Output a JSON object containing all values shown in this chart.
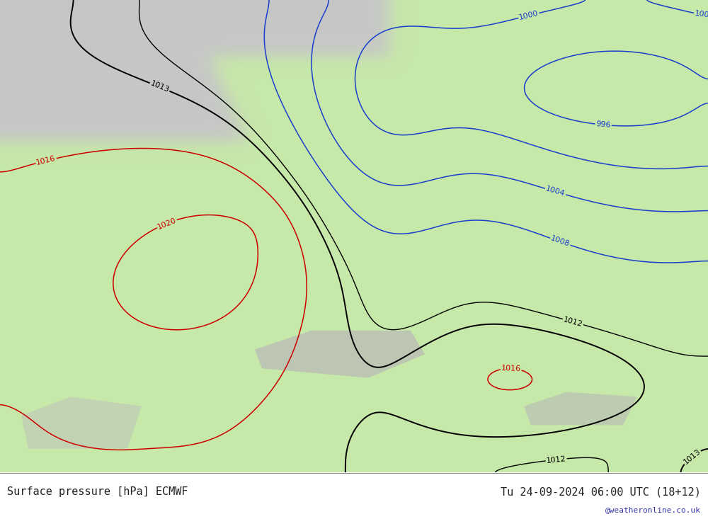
{
  "title_left": "Surface pressure [hPa] ECMWF",
  "title_right": "Tu 24-09-2024 06:00 UTC (18+12)",
  "watermark": "@weatheronline.co.uk",
  "land_color": "#c8e8a8",
  "gray_color": "#c8c8c8",
  "sea_color": "#d8eed8",
  "text_color_bottom": "#222222",
  "watermark_color": "#3333aa",
  "font_size_label": 8,
  "font_size_bottom": 11,
  "font_size_watermark": 8
}
